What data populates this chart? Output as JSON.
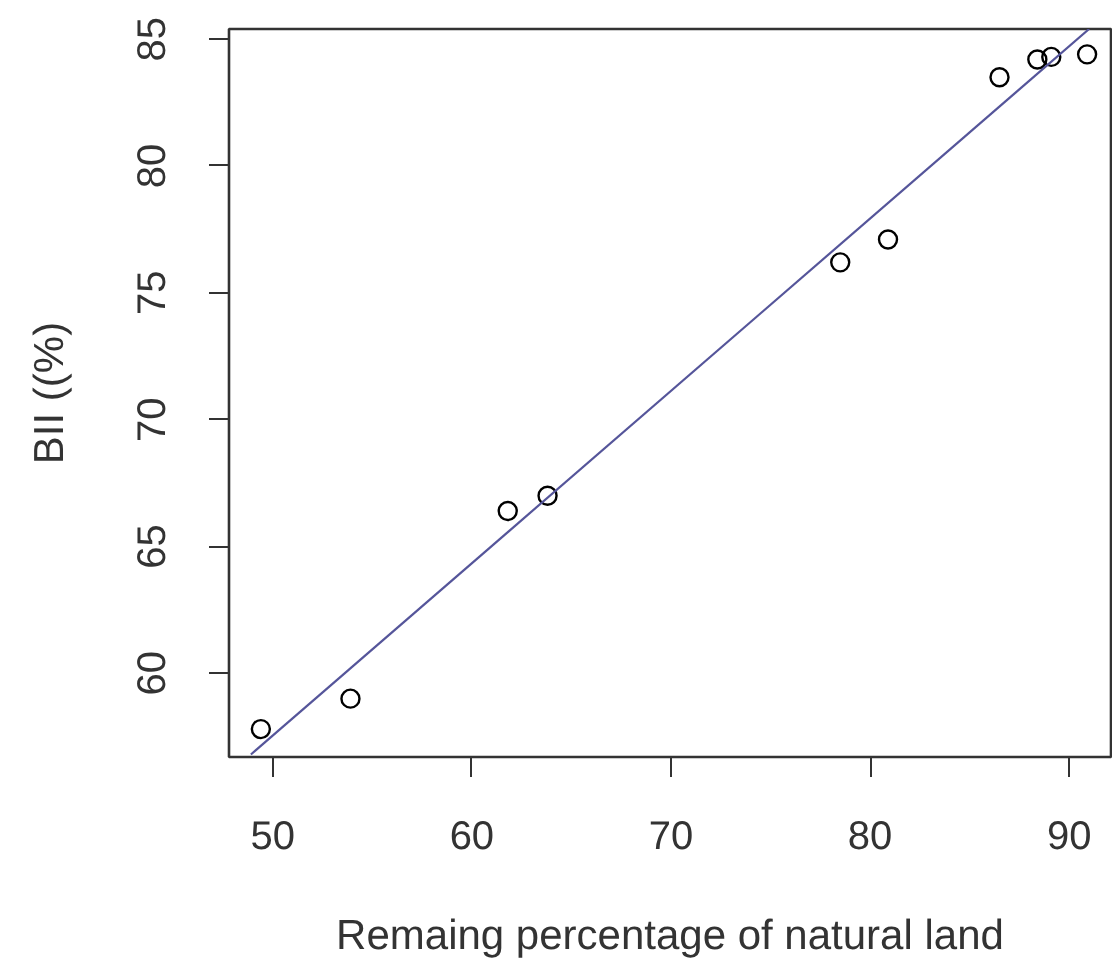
{
  "chart_data": {
    "type": "scatter",
    "xlabel": "Remaing percentage of natural land",
    "ylabel": "BII ((%)",
    "xlim": [
      47.8,
      92.1
    ],
    "ylim": [
      56.7,
      85.4
    ],
    "xticks": [
      50,
      60,
      70,
      80,
      90
    ],
    "yticks": [
      60,
      65,
      70,
      75,
      80,
      85
    ],
    "grid": false,
    "marker": "circle",
    "series": [
      {
        "color": "#000000",
        "x": [
          49.4,
          53.9,
          61.8,
          63.8,
          78.5,
          80.9,
          86.5,
          88.4,
          89.1,
          90.9
        ],
        "values": [
          57.8,
          59.0,
          66.4,
          67.0,
          76.2,
          77.1,
          83.5,
          84.2,
          84.3,
          84.4
        ]
      },
      {
        "type": "line",
        "color": "#55559a",
        "x": [
          48.9,
          91.0
        ],
        "values": [
          56.8,
          85.4
        ],
        "line_style": "solid",
        "marker": "none"
      }
    ]
  }
}
